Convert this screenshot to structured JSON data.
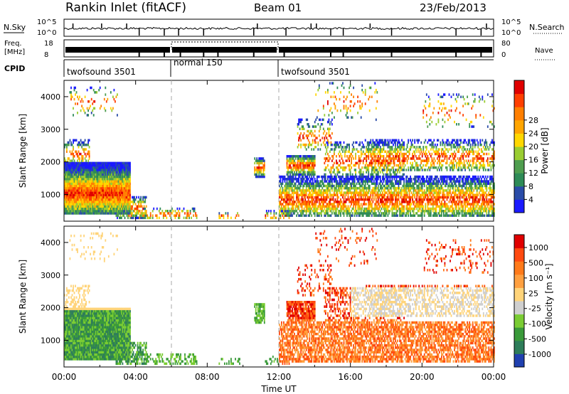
{
  "header": {
    "title": "Rankin Inlet (fitACF)",
    "beam": "Beam 01",
    "date": "23/Feb/2013"
  },
  "panels": {
    "nsky_label": "N.Sky",
    "nsky_ticks": [
      "10^5",
      "10^0"
    ],
    "nsearch_label": "N.Search",
    "freq_label_1": "Freq.",
    "freq_label_2": "[MHz]",
    "freq_ticks": [
      "18",
      "8"
    ],
    "nave_label": "Nave",
    "nave_ticks": [
      "80",
      "0"
    ],
    "cpid_label": "CPID",
    "cpid_segments": [
      {
        "label": "twofsound 3501",
        "start": 0,
        "end": 6
      },
      {
        "label": "normal 150",
        "start": 6,
        "end": 12
      },
      {
        "label": "twofsound 3501",
        "start": 12,
        "end": 24
      }
    ]
  },
  "chart_data": [
    {
      "type": "heatmap",
      "name": "power",
      "ylabel": "Slant Range [km]",
      "xlabel": "",
      "xlim": [
        0,
        24
      ],
      "ylim": [
        180,
        4500
      ],
      "ytick_labels": [
        "1000",
        "2000",
        "3000",
        "4000"
      ],
      "xtick_labels": [],
      "colorbar_label": "Power [dB]",
      "colorbar_ticks": [
        "4",
        "8",
        "12",
        "16",
        "20",
        "24",
        "28"
      ],
      "colorbar_colors": [
        "#1a1aff",
        "#2a4ca8",
        "#2e8b57",
        "#4f9e4f",
        "#9acd32",
        "#ffd700",
        "#ffa500",
        "#ff7f00",
        "#ff3f00",
        "#e00000"
      ],
      "dashed_lines_ut": [
        6,
        12
      ]
    },
    {
      "type": "heatmap",
      "name": "velocity",
      "ylabel": "Slant Range [km]",
      "xlabel": "Time UT",
      "xlim": [
        0,
        24
      ],
      "ylim": [
        180,
        4500
      ],
      "ytick_labels": [
        "1000",
        "2000",
        "3000",
        "4000"
      ],
      "xtick_labels": [
        "00:00",
        "04:00",
        "08:00",
        "12:00",
        "16:00",
        "20:00",
        "00:00"
      ],
      "colorbar_label": "Velocity [m s⁻¹]",
      "colorbar_ticks": [
        "1000",
        "500",
        "100",
        "25",
        "-25",
        "-100",
        "-500",
        "-1000"
      ],
      "colorbar_colors": [
        "#2040b0",
        "#2e7d5a",
        "#3a9a3a",
        "#7acc33",
        "#cfcfcf",
        "#ffd47a",
        "#ffa040",
        "#ff7a1a",
        "#ff4a10",
        "#e00000"
      ],
      "dashed_lines_ut": [
        6,
        12
      ]
    }
  ]
}
